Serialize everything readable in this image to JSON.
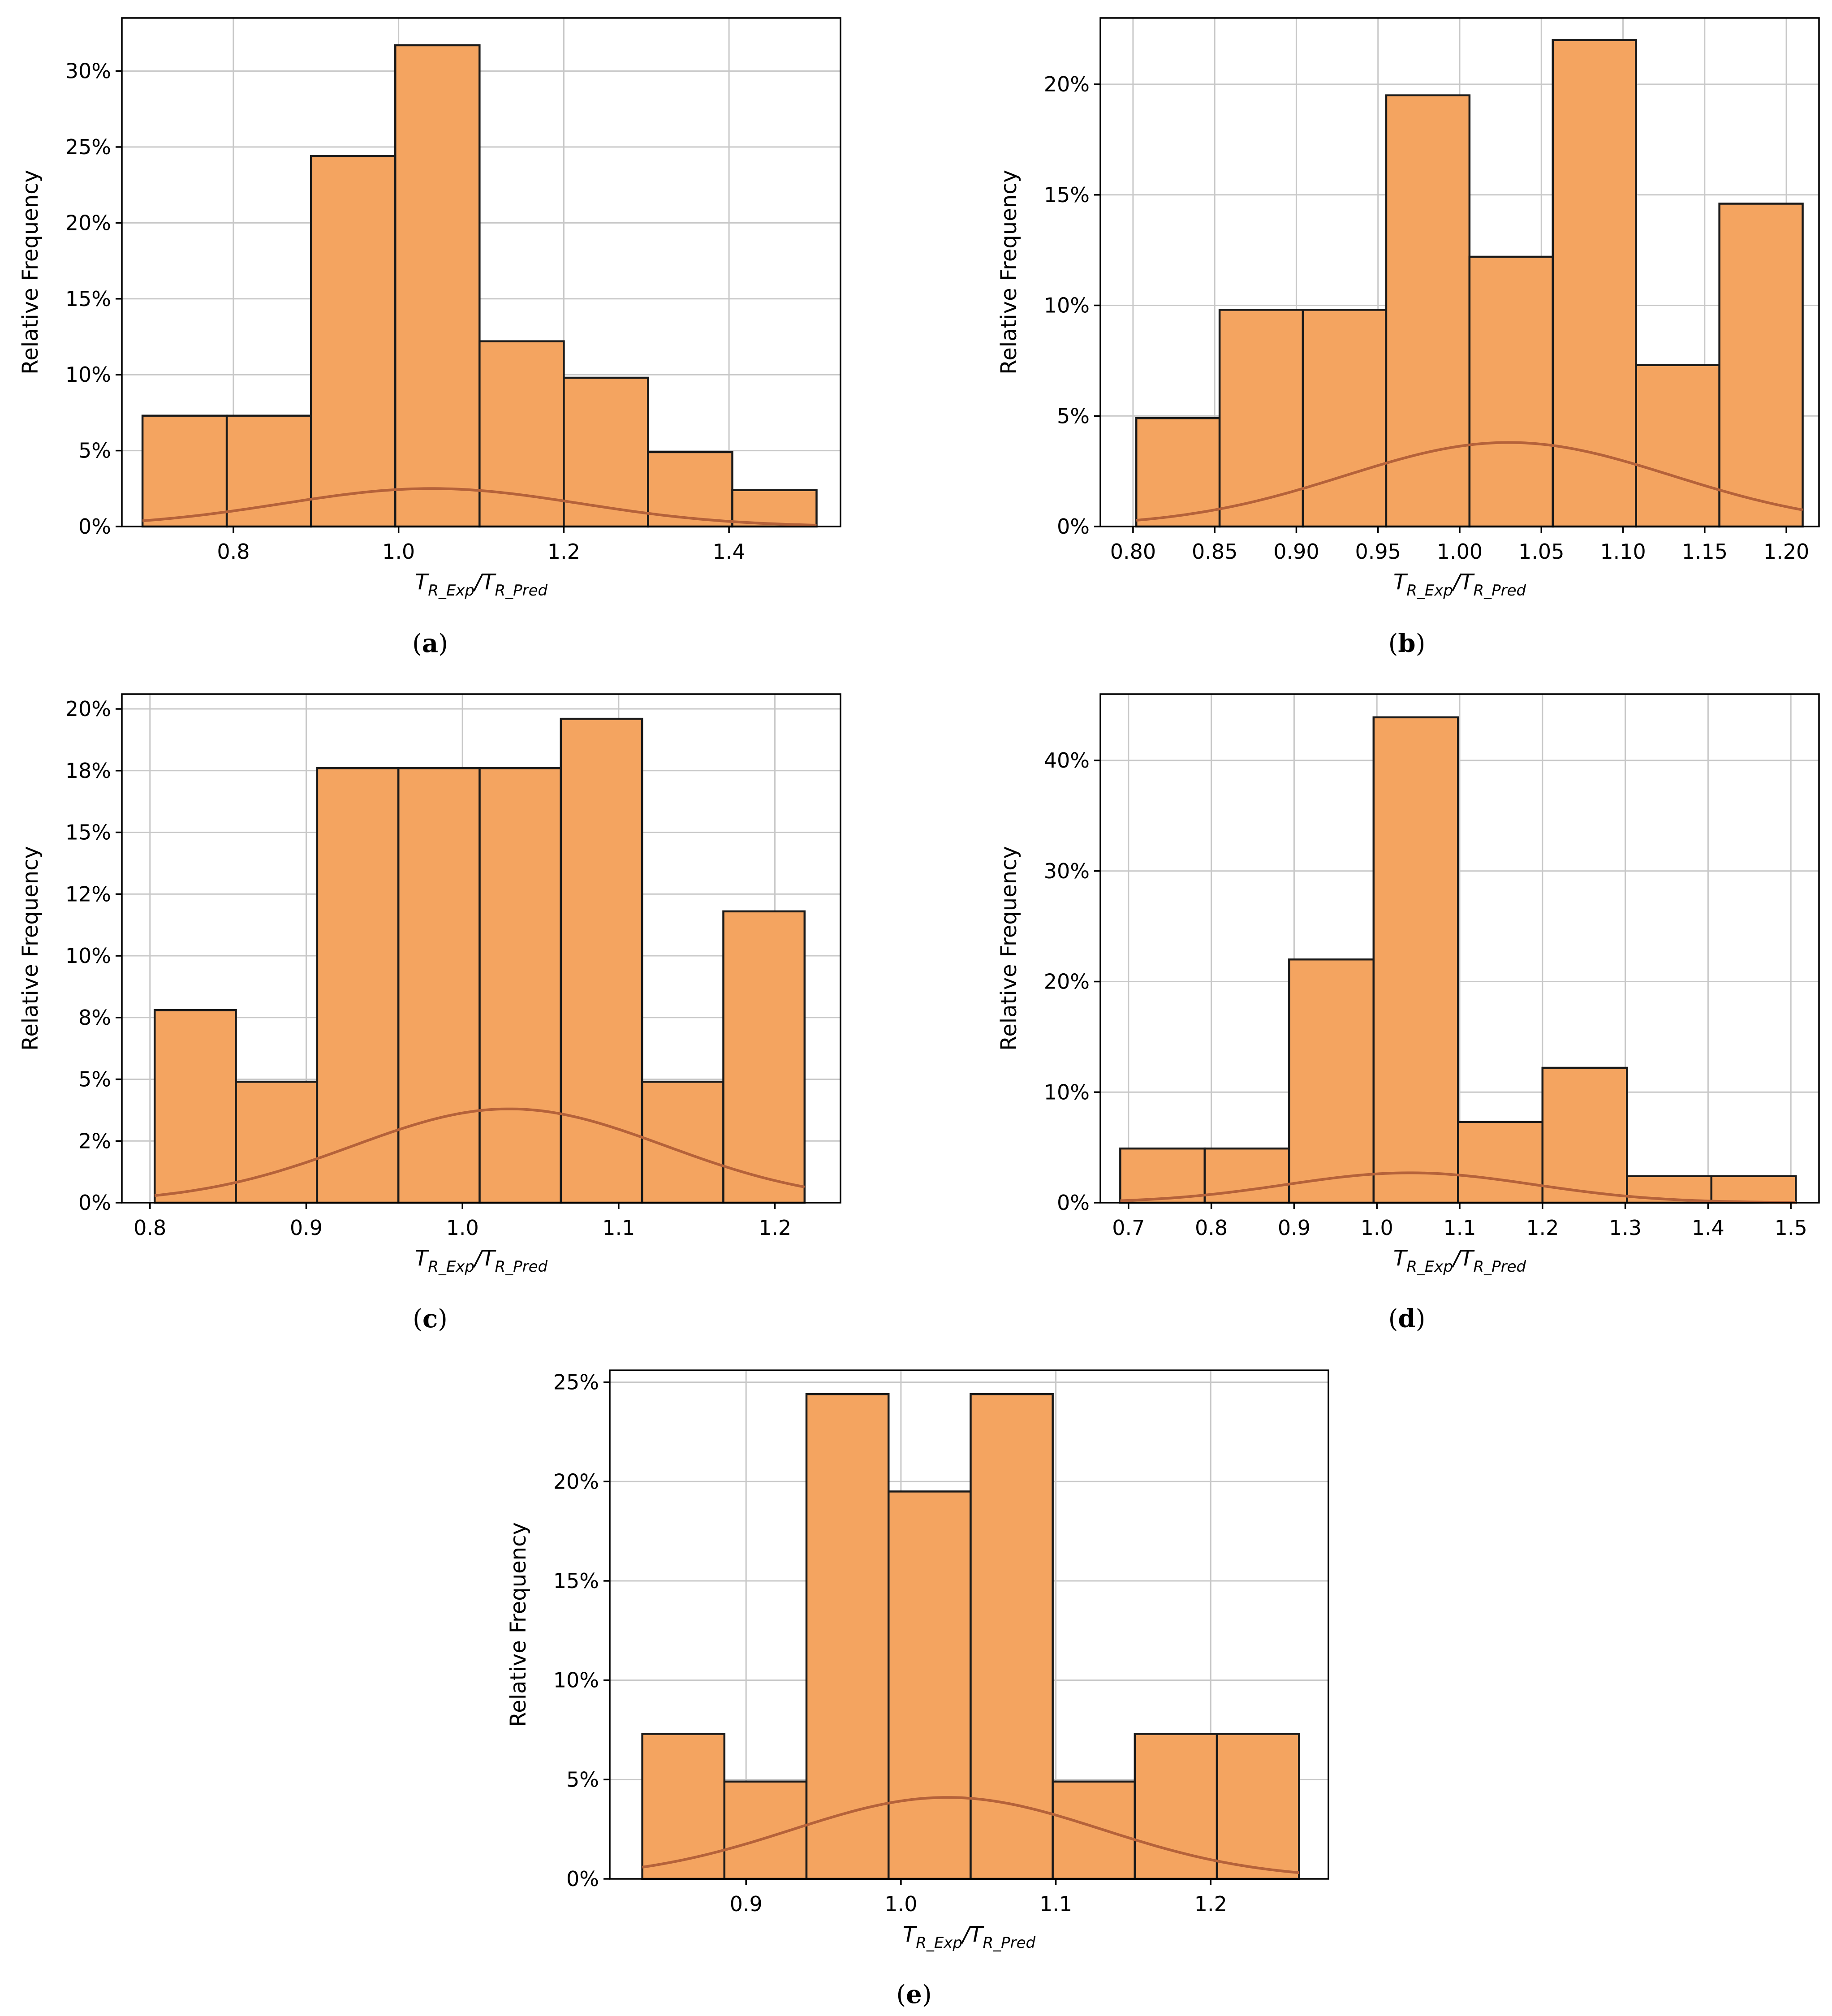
{
  "figure": {
    "bar_color": "#F4A460",
    "bar_edge_color": "#1a1a1a",
    "kde_color": "#B5623A",
    "grid_color": "#c8c8c8",
    "x_label_base": "T",
    "x_label_sub1": "R_Exp",
    "x_label_slash": "/",
    "x_label_sub2": "R_Pred"
  },
  "chart_data": [
    {
      "id": "a",
      "type": "bar",
      "caption_open": "(",
      "caption_letter": "a",
      "caption_close": ")",
      "xlabel": "T_R_Exp/T_R_Pred",
      "ylabel": "Relative Frequency",
      "xlim": [
        0.665,
        1.535
      ],
      "ylim": [
        0,
        33.5
      ],
      "xticks": [
        0.8,
        1.0,
        1.2,
        1.4
      ],
      "xtick_labels": [
        "0.8",
        "1.0",
        "1.2",
        "1.4"
      ],
      "yticks": [
        0,
        5,
        10,
        15,
        20,
        25,
        30
      ],
      "ytick_labels": [
        "0%",
        "5%",
        "10%",
        "15%",
        "20%",
        "25%",
        "30%"
      ],
      "bin_edges": [
        0.69,
        0.792,
        0.894,
        0.996,
        1.098,
        1.2,
        1.302,
        1.404,
        1.506
      ],
      "values": [
        7.3,
        7.3,
        24.4,
        31.7,
        12.2,
        9.8,
        4.9,
        2.4
      ],
      "kde": {
        "mean": 1.04,
        "sd": 0.18,
        "peak": 2.5
      }
    },
    {
      "id": "b",
      "type": "bar",
      "caption_open": "(",
      "caption_letter": "b",
      "caption_close": ")",
      "xlabel": "T_R_Exp/T_R_Pred",
      "ylabel": "Relative Frequency",
      "xlim": [
        0.78,
        1.22
      ],
      "ylim": [
        0,
        23
      ],
      "xticks": [
        0.8,
        0.85,
        0.9,
        0.95,
        1.0,
        1.05,
        1.1,
        1.15,
        1.2
      ],
      "xtick_labels": [
        "0.80",
        "0.85",
        "0.90",
        "0.95",
        "1.00",
        "1.05",
        "1.10",
        "1.15",
        "1.20"
      ],
      "yticks": [
        0,
        5,
        10,
        15,
        20
      ],
      "ytick_labels": [
        "0%",
        "5%",
        "10%",
        "15%",
        "20%"
      ],
      "bin_edges": [
        0.802,
        0.853,
        0.904,
        0.955,
        1.006,
        1.057,
        1.108,
        1.159,
        1.21
      ],
      "values": [
        4.9,
        9.8,
        9.8,
        19.5,
        12.2,
        22.0,
        7.3,
        14.6
      ],
      "kde": {
        "mean": 1.03,
        "sd": 0.1,
        "peak": 3.8
      }
    },
    {
      "id": "c",
      "type": "bar",
      "caption_open": "(",
      "caption_letter": "c",
      "caption_close": ")",
      "xlabel": "T_R_Exp/T_R_Pred",
      "ylabel": "Relative Frequency",
      "xlim": [
        0.782,
        1.242
      ],
      "ylim": [
        0,
        20.6
      ],
      "xticks": [
        0.8,
        0.9,
        1.0,
        1.1,
        1.2
      ],
      "xtick_labels": [
        "0.8",
        "0.9",
        "1.0",
        "1.1",
        "1.2"
      ],
      "yticks": [
        0,
        2.5,
        5,
        7.5,
        10,
        12.5,
        15,
        17.5,
        20
      ],
      "ytick_labels": [
        "0%",
        "2%",
        "5%",
        "8%",
        "10%",
        "12%",
        "15%",
        "18%",
        "20%"
      ],
      "bin_edges": [
        0.803,
        0.855,
        0.907,
        0.959,
        1.011,
        1.063,
        1.115,
        1.167,
        1.219
      ],
      "values": [
        7.8,
        4.9,
        17.6,
        17.6,
        17.6,
        19.6,
        4.9,
        11.8
      ],
      "kde": {
        "mean": 1.03,
        "sd": 0.1,
        "peak": 3.8
      }
    },
    {
      "id": "d",
      "type": "bar",
      "caption_open": "(",
      "caption_letter": "d",
      "caption_close": ")",
      "xlabel": "T_R_Exp/T_R_Pred",
      "ylabel": "Relative Frequency",
      "xlim": [
        0.666,
        1.534
      ],
      "ylim": [
        0,
        46
      ],
      "xticks": [
        0.7,
        0.8,
        0.9,
        1.0,
        1.1,
        1.2,
        1.3,
        1.4,
        1.5
      ],
      "xtick_labels": [
        "0.7",
        "0.8",
        "0.9",
        "1.0",
        "1.1",
        "1.2",
        "1.3",
        "1.4",
        "1.5"
      ],
      "yticks": [
        0,
        10,
        20,
        30,
        40
      ],
      "ytick_labels": [
        "0%",
        "10%",
        "20%",
        "30%",
        "40%"
      ],
      "bin_edges": [
        0.69,
        0.792,
        0.894,
        0.996,
        1.098,
        1.2,
        1.302,
        1.404,
        1.506
      ],
      "values": [
        4.9,
        4.9,
        22.0,
        43.9,
        7.3,
        12.2,
        2.4,
        2.4
      ],
      "kde": {
        "mean": 1.04,
        "sd": 0.15,
        "peak": 2.7
      }
    },
    {
      "id": "e",
      "type": "bar",
      "caption_open": "(",
      "caption_letter": "e",
      "caption_close": ")",
      "xlabel": "T_R_Exp/T_R_Pred",
      "ylabel": "Relative Frequency",
      "xlim": [
        0.812,
        1.276
      ],
      "ylim": [
        0,
        25.6
      ],
      "xticks": [
        0.9,
        1.0,
        1.1,
        1.2
      ],
      "xtick_labels": [
        "0.9",
        "1.0",
        "1.1",
        "1.2"
      ],
      "yticks": [
        0,
        5,
        10,
        15,
        20,
        25
      ],
      "ytick_labels": [
        "0%",
        "5%",
        "10%",
        "15%",
        "20%",
        "25%"
      ],
      "bin_edges": [
        0.833,
        0.886,
        0.939,
        0.992,
        1.045,
        1.098,
        1.151,
        1.204,
        1.257
      ],
      "values": [
        7.3,
        4.9,
        24.4,
        19.5,
        24.4,
        4.9,
        7.3,
        7.3
      ],
      "kde": {
        "mean": 1.03,
        "sd": 0.1,
        "peak": 4.1
      }
    }
  ]
}
